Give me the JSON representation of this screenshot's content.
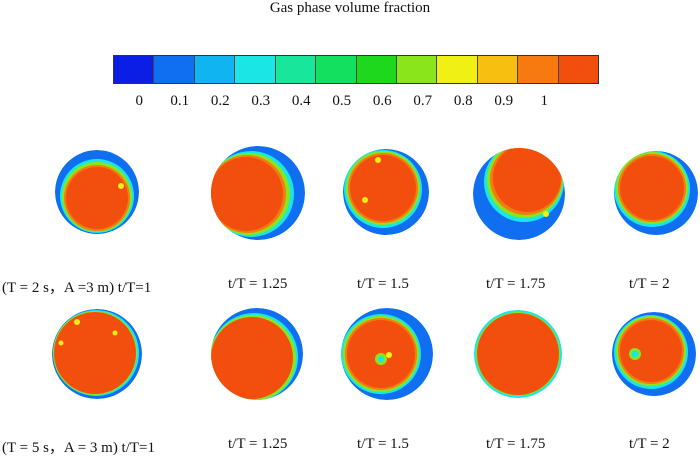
{
  "legend": {
    "title": "Gas phase volume fraction",
    "colors": [
      "#0a1ee6",
      "#0f6ff0",
      "#10b4f0",
      "#1ae6e6",
      "#18e69a",
      "#14e060",
      "#1ed81e",
      "#8ae61a",
      "#f0f014",
      "#f7bf0f",
      "#f77a10",
      "#f24f0f"
    ],
    "ticks": [
      "0",
      "0.1",
      "0.2",
      "0.3",
      "0.4",
      "0.5",
      "0.6",
      "0.7",
      "0.8",
      "0.9",
      "1"
    ]
  },
  "rows": [
    {
      "case_label": "(T = 2 s，A =3 m) t/T=1",
      "labels": [
        "t/T = 1.25",
        "t/T = 1.5",
        "t/T = 1.75",
        "t/T = 2"
      ]
    },
    {
      "case_label": "(T = 5 s，A = 3 m) t/T=1",
      "labels": [
        "t/T = 1.25",
        "t/T = 1.5",
        "t/T = 1.75",
        "t/T = 2"
      ]
    }
  ]
}
